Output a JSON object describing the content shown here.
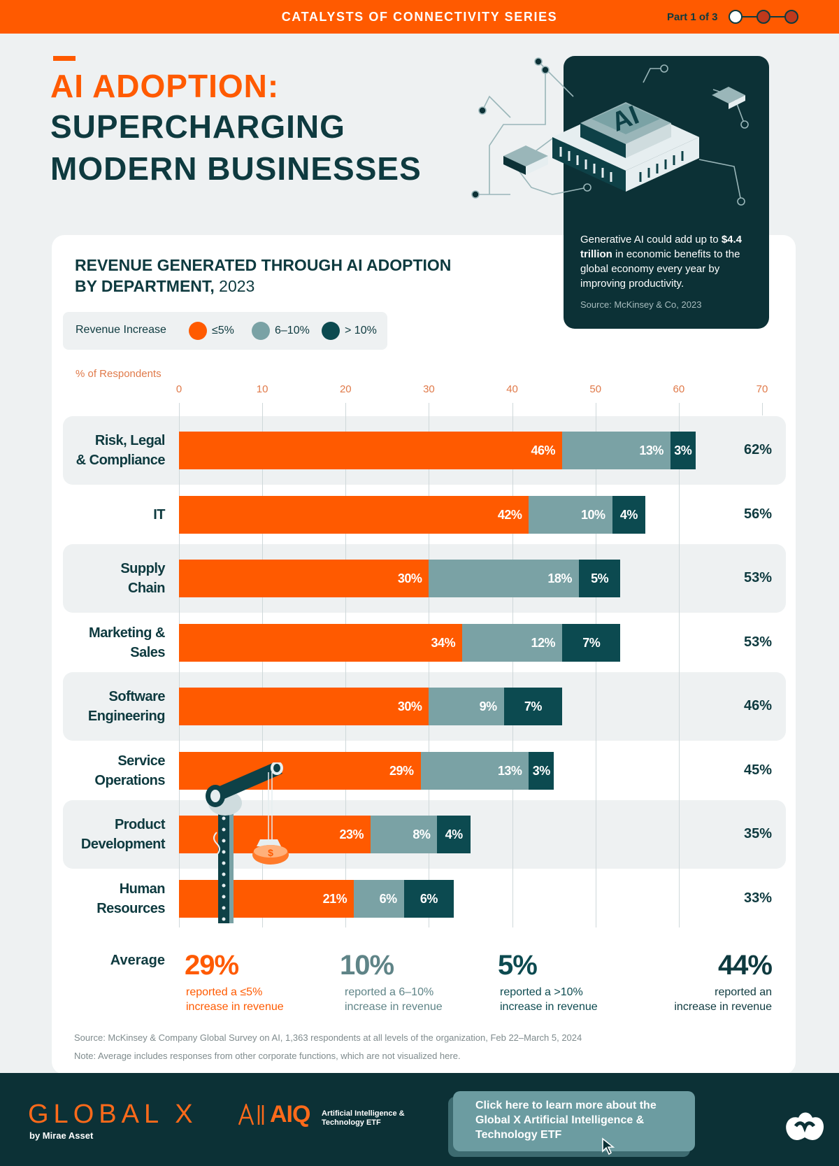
{
  "banner": {
    "series_title": "CATALYSTS OF CONNECTIVITY SERIES",
    "part_label": "Part 1 of 3"
  },
  "header": {
    "title_line1": "AI ADOPTION:",
    "title_line2": "SUPERCHARGING",
    "title_line3": "MODERN BUSINESSES"
  },
  "callout": {
    "text_before": "Generative AI could add up to ",
    "text_bold": "$4.4 trillion",
    "text_after": " in economic benefits to the global economy every year by improving productivity.",
    "source": "Source: McKinsey & Co, 2023",
    "chip_label": "AI"
  },
  "chart_data": {
    "type": "bar",
    "orientation": "horizontal",
    "stacked": true,
    "title": "REVENUE GENERATED THROUGH AI ADOPTION",
    "subtitle_bold": "BY DEPARTMENT,",
    "subtitle_year": "2023",
    "legend_title": "Revenue Increase",
    "xlabel": "% of Respondents",
    "xlim": [
      0,
      70
    ],
    "xticks": [
      0,
      10,
      20,
      30,
      40,
      50,
      60,
      70
    ],
    "grid": true,
    "categories": [
      "Risk, Legal & Compliance",
      "IT",
      "Supply Chain",
      "Marketing & Sales",
      "Software Engineering",
      "Service Operations",
      "Product Development",
      "Human Resources"
    ],
    "series": [
      {
        "name": "≤5%",
        "color": "#ff5a00",
        "values": [
          46,
          42,
          30,
          34,
          30,
          29,
          23,
          21
        ]
      },
      {
        "name": "6–10%",
        "color": "#7aa2a5",
        "values": [
          13,
          10,
          18,
          12,
          9,
          13,
          8,
          6
        ]
      },
      {
        "name": "> 10%",
        "color": "#0c4a50",
        "values": [
          3,
          4,
          5,
          7,
          7,
          3,
          4,
          6
        ]
      }
    ],
    "totals": [
      62,
      56,
      53,
      53,
      46,
      45,
      35,
      33
    ]
  },
  "averages": {
    "label": "Average",
    "items": [
      {
        "value": "29%",
        "line1": "reported a ≤5%",
        "line2": "increase in revenue",
        "color": "#ff5a00"
      },
      {
        "value": "10%",
        "line1": "reported a 6–10%",
        "line2": "increase in revenue",
        "color": "#5f8487"
      },
      {
        "value": "5%",
        "line1": "reported a >10%",
        "line2": "increase in revenue",
        "color": "#0c4a50"
      },
      {
        "value": "44%",
        "line1": "reported an",
        "line2": "increase in revenue",
        "color": "#0e3a3f"
      }
    ]
  },
  "notes": {
    "source": "Source: McKinsey & Company Global Survey on AI, 1,363 respondents at all levels of the organization, Feb 22–March 5, 2024",
    "note": "Note: Average includes responses from other corporate functions, which are not visualized here."
  },
  "footer": {
    "brand": "GLOBAL X",
    "brand_sub": "by Mirae Asset",
    "etf_ticker": "AIQ",
    "etf_name": "Artificial Intelligence & Technology ETF",
    "cta_text": "Click here to learn more about the Global X Artificial Intelligence & Technology ETF"
  },
  "icons": {
    "chip": "ai-chip-icon",
    "crane": "crane-icon",
    "cursor": "cursor-icon",
    "logo": "visual-capitalist-logo-icon"
  }
}
